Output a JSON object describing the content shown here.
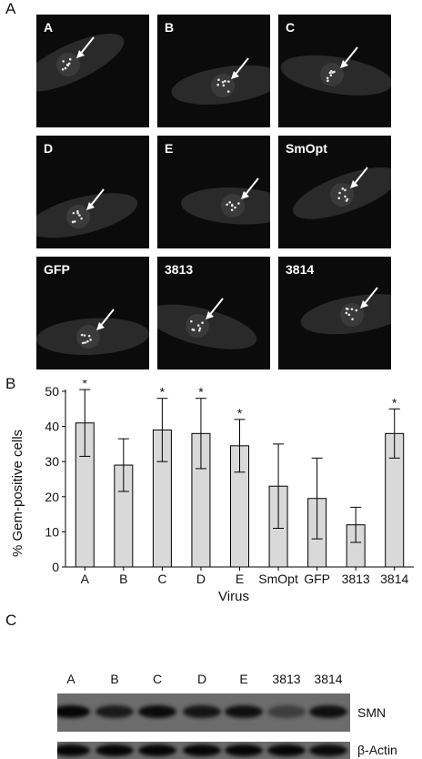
{
  "panel_labels": {
    "a": "A",
    "b": "B",
    "c": "C"
  },
  "micrographs": [
    {
      "label": "A"
    },
    {
      "label": "B"
    },
    {
      "label": "C"
    },
    {
      "label": "D"
    },
    {
      "label": "E"
    },
    {
      "label": "SmOpt"
    },
    {
      "label": "GFP"
    },
    {
      "label": "3813"
    },
    {
      "label": "3814"
    }
  ],
  "chart_data": {
    "type": "bar",
    "categories": [
      "A",
      "B",
      "C",
      "D",
      "E",
      "SmOpt",
      "GFP",
      "3813",
      "3814"
    ],
    "values": [
      41,
      29,
      39,
      38,
      34.5,
      23,
      19.5,
      12,
      38
    ],
    "error_plus": [
      9.5,
      7.5,
      9,
      10,
      7.5,
      12,
      11.5,
      5,
      7
    ],
    "error_minus": [
      9.5,
      7.5,
      9,
      10,
      7.5,
      12,
      11.5,
      5,
      7
    ],
    "significant": [
      true,
      false,
      true,
      true,
      true,
      false,
      false,
      false,
      true
    ],
    "significance_marker": "*",
    "ylabel": "% Gem-positive cells",
    "xlabel": "Virus",
    "ylim": [
      0,
      50
    ],
    "yticks": [
      0,
      10,
      20,
      30,
      40,
      50
    ],
    "bar_color": "#d9d9d9"
  },
  "western_blot": {
    "lanes": [
      "A",
      "B",
      "C",
      "D",
      "E",
      "3813",
      "3814"
    ],
    "rows": [
      {
        "label": "SMN",
        "intensity": [
          1.0,
          0.8,
          0.95,
          0.85,
          0.9,
          0.45,
          0.9
        ]
      },
      {
        "label": "β-Actin",
        "intensity": [
          1.0,
          1.0,
          1.0,
          1.0,
          1.0,
          1.0,
          0.95
        ]
      }
    ]
  }
}
